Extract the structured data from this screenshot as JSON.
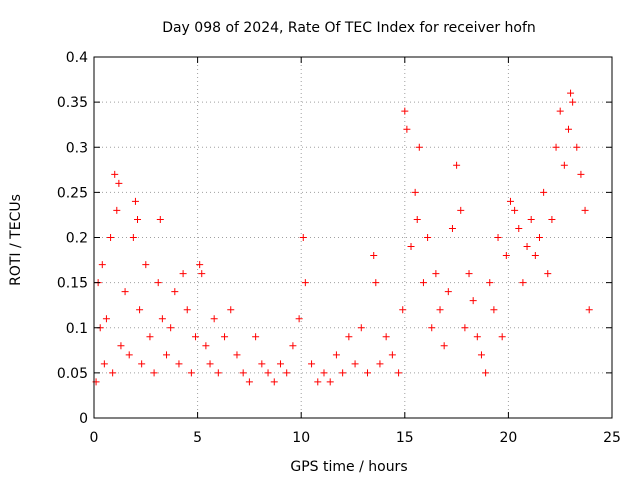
{
  "chart_data": {
    "type": "scatter",
    "title": "Day 098 of 2024, Rate Of TEC Index for receiver hofn",
    "xlabel": "GPS time / hours",
    "ylabel": "ROTI / TECUs",
    "xlim": [
      0,
      25
    ],
    "ylim": [
      0,
      0.4
    ],
    "x_ticks": [
      "0",
      "5",
      "10",
      "15",
      "20",
      "25"
    ],
    "y_ticks": [
      "0",
      "0.05",
      "0.1",
      "0.15",
      "0.2",
      "0.25",
      "0.3",
      "0.35",
      "0.4"
    ],
    "grid": true,
    "legend": "none",
    "marker": "plus",
    "color": "#ff0000",
    "series": [
      {
        "x": [
          0.1,
          0.2,
          0.3,
          0.4,
          0.5,
          0.6,
          0.8,
          0.9,
          1.0,
          1.1,
          1.2,
          1.3,
          1.5,
          1.7,
          1.9,
          2.0,
          2.1,
          2.2,
          2.3,
          2.5,
          2.7,
          2.9,
          3.1,
          3.2,
          3.3,
          3.5,
          3.7,
          3.9,
          4.1,
          4.3,
          4.5,
          4.7,
          4.9,
          5.1,
          5.2,
          5.4,
          5.6,
          5.8,
          6.0,
          6.3,
          6.6,
          6.9,
          7.2,
          7.5,
          7.8,
          8.1,
          8.4,
          8.7,
          9.0,
          9.3,
          9.6,
          9.9,
          10.1,
          10.2,
          10.5,
          10.8,
          11.1,
          11.4,
          11.7,
          12.0,
          12.3,
          12.6,
          12.9,
          13.2,
          13.5,
          13.6,
          13.8,
          14.1,
          14.4,
          14.7,
          14.9,
          15.0,
          15.1,
          15.3,
          15.5,
          15.6,
          15.7,
          15.9,
          16.1,
          16.3,
          16.5,
          16.7,
          16.9,
          17.1,
          17.3,
          17.5,
          17.7,
          17.9,
          18.1,
          18.3,
          18.5,
          18.7,
          18.9,
          19.1,
          19.3,
          19.5,
          19.7,
          19.9,
          20.1,
          20.3,
          20.5,
          20.7,
          20.9,
          21.1,
          21.3,
          21.5,
          21.7,
          21.9,
          22.1,
          22.3,
          22.5,
          22.7,
          22.9,
          23.0,
          23.1,
          23.3,
          23.5,
          23.7,
          23.9
        ],
        "y": [
          0.04,
          0.15,
          0.1,
          0.17,
          0.06,
          0.11,
          0.2,
          0.05,
          0.27,
          0.23,
          0.26,
          0.08,
          0.14,
          0.07,
          0.2,
          0.24,
          0.22,
          0.12,
          0.06,
          0.17,
          0.09,
          0.05,
          0.15,
          0.22,
          0.11,
          0.07,
          0.1,
          0.14,
          0.06,
          0.16,
          0.12,
          0.05,
          0.09,
          0.17,
          0.16,
          0.08,
          0.06,
          0.11,
          0.05,
          0.09,
          0.12,
          0.07,
          0.05,
          0.04,
          0.09,
          0.06,
          0.05,
          0.04,
          0.06,
          0.05,
          0.08,
          0.11,
          0.2,
          0.15,
          0.06,
          0.04,
          0.05,
          0.04,
          0.07,
          0.05,
          0.09,
          0.06,
          0.1,
          0.05,
          0.18,
          0.15,
          0.06,
          0.09,
          0.07,
          0.05,
          0.12,
          0.34,
          0.32,
          0.19,
          0.25,
          0.22,
          0.3,
          0.15,
          0.2,
          0.1,
          0.16,
          0.12,
          0.08,
          0.14,
          0.21,
          0.28,
          0.23,
          0.1,
          0.16,
          0.13,
          0.09,
          0.07,
          0.05,
          0.15,
          0.12,
          0.2,
          0.09,
          0.18,
          0.24,
          0.23,
          0.21,
          0.15,
          0.19,
          0.22,
          0.18,
          0.2,
          0.25,
          0.16,
          0.22,
          0.3,
          0.34,
          0.28,
          0.32,
          0.36,
          0.35,
          0.3,
          0.27,
          0.23,
          0.12
        ]
      }
    ]
  }
}
